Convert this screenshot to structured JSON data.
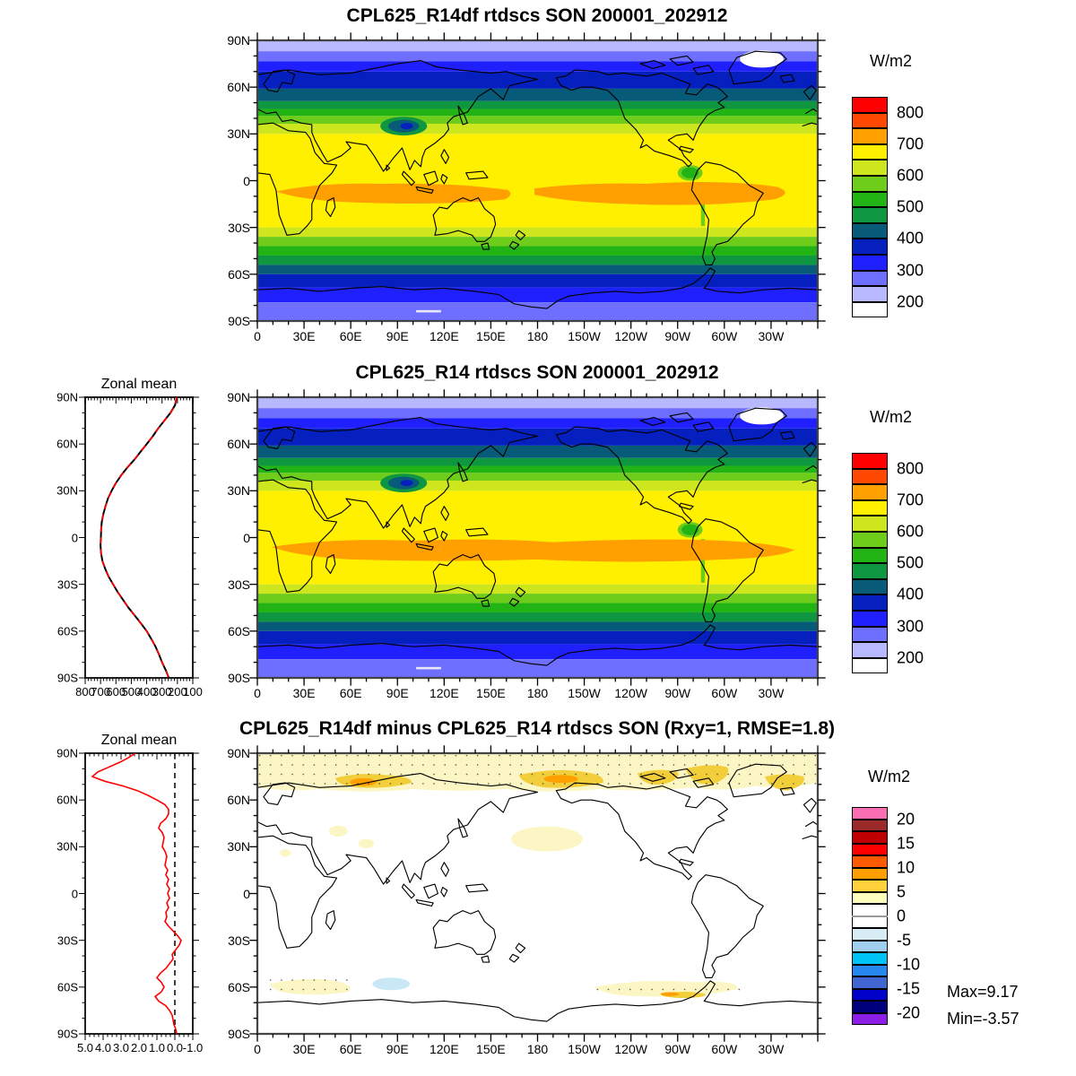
{
  "figure": {
    "background": "#FFFFFF"
  },
  "panels": {
    "top": {
      "title": "CPL625_R14df rtdscs SON 200001_202912"
    },
    "middle": {
      "title": "CPL625_R14 rtdscs SON 200001_202912",
      "zonal_title": "Zonal mean"
    },
    "bottom": {
      "title": "CPL625_R14df minus CPL625_R14 rtdscs SON (Rxy=1, RMSE=1.8)",
      "zonal_title": "Zonal mean",
      "max_label": "Max=9.17",
      "min_label": "Min=-3.57"
    }
  },
  "map_axes": {
    "lat_labels": [
      "90N",
      "60N",
      "30N",
      "0",
      "30S",
      "60S",
      "90S"
    ],
    "lon_labels": [
      "0",
      "30E",
      "60E",
      "90E",
      "120E",
      "150E",
      "180",
      "150W",
      "120W",
      "90W",
      "60W",
      "30W"
    ]
  },
  "zonal_axis": {
    "field_x_labels": [
      "800",
      "700",
      "600",
      "500",
      "400",
      "300",
      "200",
      "100"
    ],
    "diff_x_labels": [
      "5.0",
      "4.0",
      "3.0",
      "2.0",
      "1.0",
      "0.0",
      "-1.0"
    ]
  },
  "colorbars": {
    "field": {
      "units": "W/m2",
      "boundary_labels": [
        "800",
        "700",
        "600",
        "500",
        "400",
        "300",
        "200"
      ],
      "colors": [
        "#FF0000",
        "#FF4800",
        "#FFA000",
        "#FFF000",
        "#CDE61E",
        "#6ECC1A",
        "#22B414",
        "#0E9640",
        "#075A78",
        "#0520BE",
        "#2020FF",
        "#6E6EFF",
        "#B8B8FF",
        "#FFFFFF"
      ]
    },
    "diff": {
      "units": "W/m2",
      "boundary_labels": [
        "20",
        "15",
        "10",
        "5",
        "0",
        "-5",
        "-10",
        "-15",
        "-20"
      ],
      "colors": [
        "#FA6EB4",
        "#9B2A2A",
        "#BE0000",
        "#FF0000",
        "#FF5A00",
        "#FFA000",
        "#FFD23C",
        "#FFFFBE",
        "#FFFFFF",
        "#FFFFFF",
        "#D7ECF5",
        "#A0CFEF",
        "#00C3F5",
        "#2688F0",
        "#4166D2",
        "#0000C8",
        "#00007D",
        "#8C1EE6"
      ]
    }
  },
  "chart_data": [
    {
      "id": "zonal-mean-field",
      "type": "line",
      "title": "Zonal mean",
      "xlabel_values": [
        800,
        700,
        600,
        500,
        400,
        300,
        200,
        100
      ],
      "xlim": [
        800,
        100
      ],
      "x_reversed": true,
      "units": "W/m2",
      "y_ticks": [
        "90N",
        "60N",
        "30N",
        "0",
        "30S",
        "60S",
        "90S"
      ],
      "series": [
        {
          "name": "CPL625_R14df",
          "color": "#000000",
          "line_style": "solid"
        },
        {
          "name": "CPL625_R14",
          "color": "#FF0000",
          "line_style": "dashed",
          "note": "overlaps the black curve"
        }
      ],
      "lat": [
        90,
        85,
        80,
        75,
        70,
        65,
        60,
        55,
        50,
        45,
        40,
        35,
        30,
        25,
        20,
        15,
        10,
        5,
        0,
        -5,
        -10,
        -15,
        -20,
        -25,
        -30,
        -35,
        -40,
        -45,
        -50,
        -55,
        -60,
        -65,
        -70,
        -75,
        -80,
        -85,
        -90
      ],
      "values": [
        205,
        215,
        245,
        285,
        325,
        360,
        400,
        440,
        480,
        525,
        565,
        600,
        628,
        652,
        668,
        682,
        692,
        696,
        698,
        700,
        697,
        688,
        670,
        648,
        618,
        588,
        553,
        518,
        478,
        438,
        400,
        370,
        342,
        320,
        300,
        276,
        256
      ]
    },
    {
      "id": "zonal-mean-diff",
      "type": "line",
      "title": "Zonal mean",
      "xlabel_values": [
        5.0,
        4.0,
        3.0,
        2.0,
        1.0,
        0.0,
        -1.0
      ],
      "xlim": [
        5,
        -1
      ],
      "x_reversed": true,
      "units": "W/m2",
      "reference_line": 0,
      "series": [
        {
          "name": "CPL625_R14df minus CPL625_R14",
          "color": "#FF0000",
          "line_style": "solid"
        }
      ],
      "lat": [
        90,
        87,
        84,
        81,
        78,
        75,
        72,
        69,
        66,
        63,
        60,
        57,
        54,
        51,
        48,
        45,
        42,
        39,
        36,
        33,
        30,
        27,
        24,
        21,
        18,
        15,
        12,
        9,
        6,
        3,
        0,
        -3,
        -6,
        -9,
        -12,
        -15,
        -18,
        -21,
        -24,
        -27,
        -30,
        -33,
        -36,
        -39,
        -42,
        -45,
        -48,
        -51,
        -54,
        -57,
        -60,
        -63,
        -66,
        -69,
        -72,
        -75,
        -78,
        -81,
        -84,
        -87,
        -90
      ],
      "values": [
        2.2,
        2.6,
        3.1,
        3.7,
        4.3,
        4.6,
        3.9,
        2.9,
        2.1,
        1.5,
        1.0,
        0.55,
        0.35,
        0.35,
        0.5,
        0.8,
        0.9,
        0.7,
        0.6,
        0.65,
        0.7,
        0.55,
        0.45,
        0.5,
        0.55,
        0.4,
        0.5,
        0.35,
        0.45,
        0.3,
        0.4,
        0.3,
        0.45,
        0.35,
        0.5,
        0.45,
        0.55,
        0.35,
        0.1,
        -0.15,
        -0.35,
        -0.25,
        -0.05,
        0.15,
        0.1,
        0.3,
        0.5,
        0.8,
        1.0,
        0.75,
        0.6,
        0.75,
        1.1,
        0.9,
        0.5,
        0.3,
        0.15,
        0.1,
        0.05,
        -0.05,
        -0.1
      ]
    },
    {
      "id": "map-top",
      "type": "heatmap",
      "title": "CPL625_R14df rtdscs SON 200001_202912",
      "units": "W/m2",
      "contour_levels": [
        200,
        250,
        300,
        350,
        400,
        450,
        500,
        550,
        600,
        650,
        700,
        750,
        800
      ],
      "pattern": "zonal bands: ~200 W/m2 at poles rising to 650-750 W/m2 orange band just south of the equator; white >800-free; Greenland <200 (white)"
    },
    {
      "id": "map-middle",
      "type": "heatmap",
      "title": "CPL625_R14 rtdscs SON 200001_202912",
      "units": "W/m2",
      "contour_levels": [
        200,
        250,
        300,
        350,
        400,
        450,
        500,
        550,
        600,
        650,
        700,
        750,
        800
      ],
      "pattern": "nearly identical zonal band structure to map-top with continuous 700+ W/m2 orange equatorial band"
    },
    {
      "id": "map-bottom",
      "type": "heatmap",
      "title": "CPL625_R14df minus CPL625_R14 rtdscs SON (Rxy=1, RMSE=1.8)",
      "units": "W/m2",
      "contour_levels": [
        -20,
        -17.5,
        -15,
        -12.5,
        -10,
        -7.5,
        -5,
        -2.5,
        0,
        2.5,
        5,
        7.5,
        10,
        12.5,
        15,
        17.5,
        20
      ],
      "stats": {
        "Rxy": 1,
        "RMSE": 1.8,
        "max": 9.17,
        "min": -3.57
      },
      "pattern": "mostly near-zero (white); +2.5 to +10 W/m2 stippled band across the Arctic with maxima near Siberia, Bering Strait and Canadian archipelago; small positive patches near 60S; small negative (-2.5 to -5) patch in the Southern Ocean near 90E-110E"
    }
  ]
}
